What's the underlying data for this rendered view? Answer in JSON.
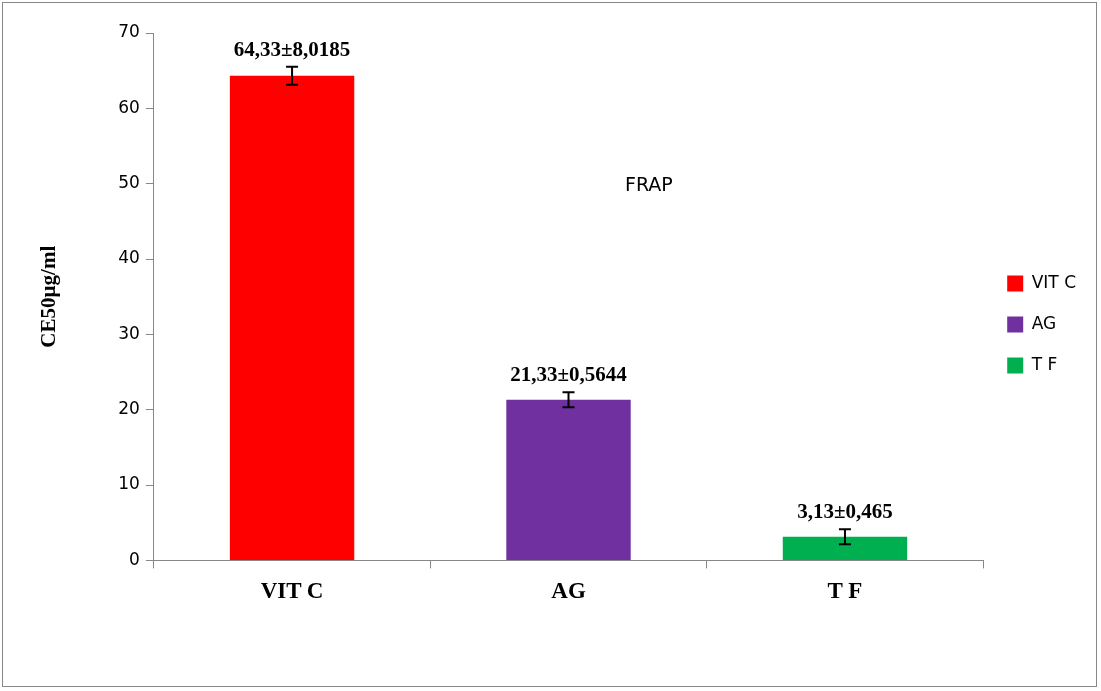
{
  "chart_data": {
    "type": "bar",
    "ylabel": "CE50µg/ml",
    "categories": [
      "VIT C",
      "AG",
      "T F"
    ],
    "series": [
      {
        "name": "VIT C",
        "color": "#ff0000",
        "values": [
          64.33,
          null,
          null
        ],
        "errors": [
          1.2,
          null,
          null
        ],
        "value_labels": [
          "64,33±8,0185",
          null,
          null
        ]
      },
      {
        "name": "AG",
        "color": "#7030a0",
        "values": [
          null,
          21.33,
          null
        ],
        "errors": [
          null,
          1,
          null
        ],
        "value_labels": [
          null,
          "21,33±0,5644",
          null
        ]
      },
      {
        "name": "T F",
        "color": "#00b050",
        "values": [
          null,
          null,
          3.13
        ],
        "errors": [
          null,
          null,
          1
        ],
        "value_labels": [
          null,
          null,
          "3,13±0,465"
        ]
      }
    ],
    "ylim": [
      0,
      70
    ],
    "yticks": [
      0,
      10,
      20,
      30,
      40,
      50,
      60,
      70
    ],
    "grid": false,
    "legend": "right",
    "annotations": [
      {
        "text": "FRAP"
      }
    ]
  }
}
